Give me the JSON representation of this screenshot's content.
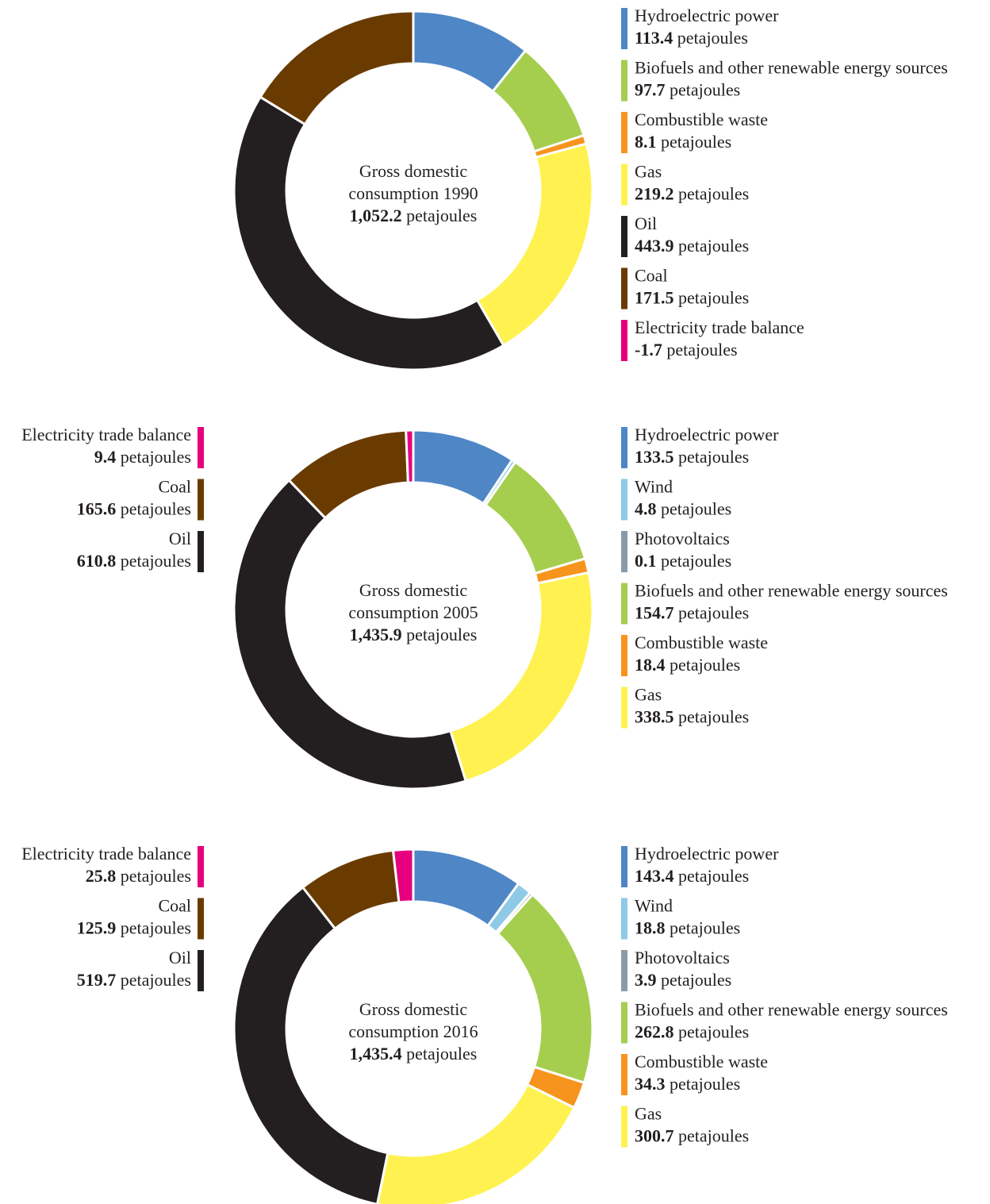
{
  "chart_data": [
    {
      "type": "donut",
      "center_lines": [
        "Gross domestic",
        "consumption 1990"
      ],
      "total": "1,052.2",
      "unit": "petajoules",
      "legend": "right",
      "categories": [
        "Hydroelectric power",
        "Biofuels and other renewable energy sources",
        "Combustible waste",
        "Gas",
        "Oil",
        "Coal",
        "Electricity trade balance"
      ],
      "values": [
        113.4,
        97.7,
        8.1,
        219.2,
        443.9,
        171.5,
        -1.7
      ],
      "colors": [
        "#4f86c6",
        "#a6ce4e",
        "#f7941d",
        "#fff250",
        "#231f20",
        "#6a3b00",
        "#e6007e"
      ]
    },
    {
      "type": "donut",
      "center_lines": [
        "Gross domestic",
        "consumption 2005"
      ],
      "total": "1,435.9",
      "unit": "petajoules",
      "legend": "split",
      "categories": [
        "Hydroelectric power",
        "Wind",
        "Photovoltaics",
        "Biofuels and other renewable energy sources",
        "Combustible waste",
        "Gas",
        "Oil",
        "Coal",
        "Electricity trade balance"
      ],
      "values": [
        133.5,
        4.8,
        0.1,
        154.7,
        18.4,
        338.5,
        610.8,
        165.6,
        9.4
      ],
      "colors": [
        "#4f86c6",
        "#8ecae6",
        "#8a9ba8",
        "#a6ce4e",
        "#f7941d",
        "#fff250",
        "#231f20",
        "#6a3b00",
        "#e6007e"
      ]
    },
    {
      "type": "donut",
      "center_lines": [
        "Gross domestic",
        "consumption 2016"
      ],
      "total": "1,435.4",
      "unit": "petajoules",
      "legend": "split",
      "categories": [
        "Hydroelectric power",
        "Wind",
        "Photovoltaics",
        "Biofuels and other renewable energy sources",
        "Combustible waste",
        "Gas",
        "Oil",
        "Coal",
        "Electricity trade balance"
      ],
      "values": [
        143.4,
        18.8,
        3.9,
        262.8,
        34.3,
        300.7,
        519.7,
        125.9,
        25.8
      ],
      "colors": [
        "#4f86c6",
        "#8ecae6",
        "#8a9ba8",
        "#a6ce4e",
        "#f7941d",
        "#fff250",
        "#231f20",
        "#6a3b00",
        "#e6007e"
      ]
    }
  ]
}
